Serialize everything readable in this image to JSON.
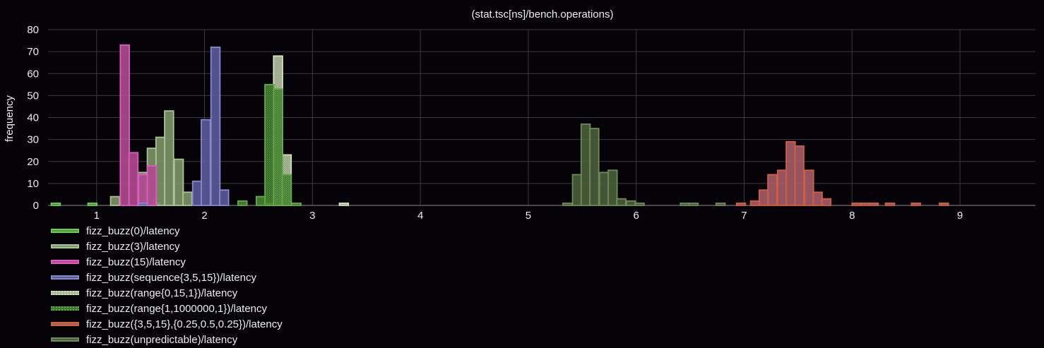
{
  "chart_data": {
    "type": "bar",
    "title": "(stat.tsc[ns]/bench.operations)",
    "xlabel": "",
    "ylabel": "frequency",
    "xlim": [
      0.55,
      9.7
    ],
    "ylim": [
      0,
      80
    ],
    "xticks": [
      1,
      2,
      3,
      4,
      5,
      6,
      7,
      8,
      9
    ],
    "yticks": [
      0,
      10,
      20,
      30,
      40,
      50,
      60,
      70,
      80
    ],
    "grid": true,
    "legend_position": "bottom-left",
    "bin_width": 0.083,
    "series": [
      {
        "name": "fizz_buzz(0)/latency",
        "fill": "#4a9a3a",
        "stroke": "#6ec85a",
        "pattern": "solid",
        "bins": [
          [
            0.58,
            1
          ],
          [
            0.92,
            1
          ],
          [
            1.5,
            1
          ],
          [
            2.58,
            1
          ]
        ]
      },
      {
        "name": "fizz_buzz(3)/latency",
        "fill": "#7d9468",
        "stroke": "#a9c493",
        "pattern": "solid",
        "bins": [
          [
            1.13,
            4
          ],
          [
            1.38,
            15
          ],
          [
            1.47,
            26
          ],
          [
            1.55,
            31
          ],
          [
            1.63,
            43
          ],
          [
            1.72,
            21
          ],
          [
            1.8,
            6
          ]
        ]
      },
      {
        "name": "fizz_buzz(15)/latency",
        "fill": "#b04a8f",
        "stroke": "#e05ac4",
        "pattern": "solid",
        "bins": [
          [
            1.22,
            73
          ],
          [
            1.3,
            24
          ],
          [
            1.39,
            14
          ],
          [
            1.47,
            18
          ]
        ]
      },
      {
        "name": "fizz_buzz(sequence{3,5,15})/latency",
        "fill": "#5a5a9a",
        "stroke": "#8a88cc",
        "pattern": "solid",
        "bins": [
          [
            1.39,
            1
          ],
          [
            1.89,
            11
          ],
          [
            1.97,
            39
          ],
          [
            2.06,
            72
          ],
          [
            2.14,
            7
          ]
        ]
      },
      {
        "name": "fizz_buzz(range{0,15,1})/latency",
        "fill": "#a9b894",
        "stroke": "#d4e0c2",
        "pattern": "dotted",
        "bins": [
          [
            2.64,
            68
          ],
          [
            2.72,
            23
          ],
          [
            3.25,
            1
          ]
        ]
      },
      {
        "name": "fizz_buzz(range{1,1000000,1})/latency",
        "fill": "#3f7a2c",
        "stroke": "#63a948",
        "pattern": "dotted",
        "bins": [
          [
            2.31,
            2
          ],
          [
            2.48,
            4
          ],
          [
            2.56,
            55
          ],
          [
            2.64,
            53
          ],
          [
            2.72,
            14
          ],
          [
            2.81,
            1
          ]
        ]
      },
      {
        "name": "fizz_buzz({3,5,15},{0.25,0.5,0.25})/latency",
        "fill": "#a85c6c",
        "stroke": "#d0603c",
        "pattern": "solid",
        "bins": [
          [
            6.93,
            1
          ],
          [
            7.06,
            2
          ],
          [
            7.14,
            7
          ],
          [
            7.22,
            14
          ],
          [
            7.31,
            16
          ],
          [
            7.39,
            29
          ],
          [
            7.47,
            27
          ],
          [
            7.56,
            16
          ],
          [
            7.64,
            6
          ],
          [
            7.72,
            3
          ],
          [
            8.0,
            1
          ],
          [
            8.08,
            1
          ],
          [
            8.16,
            1
          ],
          [
            8.31,
            1
          ],
          [
            8.55,
            1
          ],
          [
            8.81,
            1
          ]
        ]
      },
      {
        "name": "fizz_buzz(unpredictable)/latency",
        "fill": "#4a5e3a",
        "stroke": "#6e8a56",
        "pattern": "solid",
        "bins": [
          [
            5.32,
            1
          ],
          [
            5.41,
            14
          ],
          [
            5.49,
            37
          ],
          [
            5.57,
            35
          ],
          [
            5.66,
            15
          ],
          [
            5.74,
            16
          ],
          [
            5.82,
            3
          ],
          [
            5.91,
            2
          ],
          [
            5.99,
            1
          ],
          [
            6.41,
            1
          ],
          [
            6.49,
            1
          ],
          [
            6.74,
            1
          ]
        ]
      }
    ]
  }
}
